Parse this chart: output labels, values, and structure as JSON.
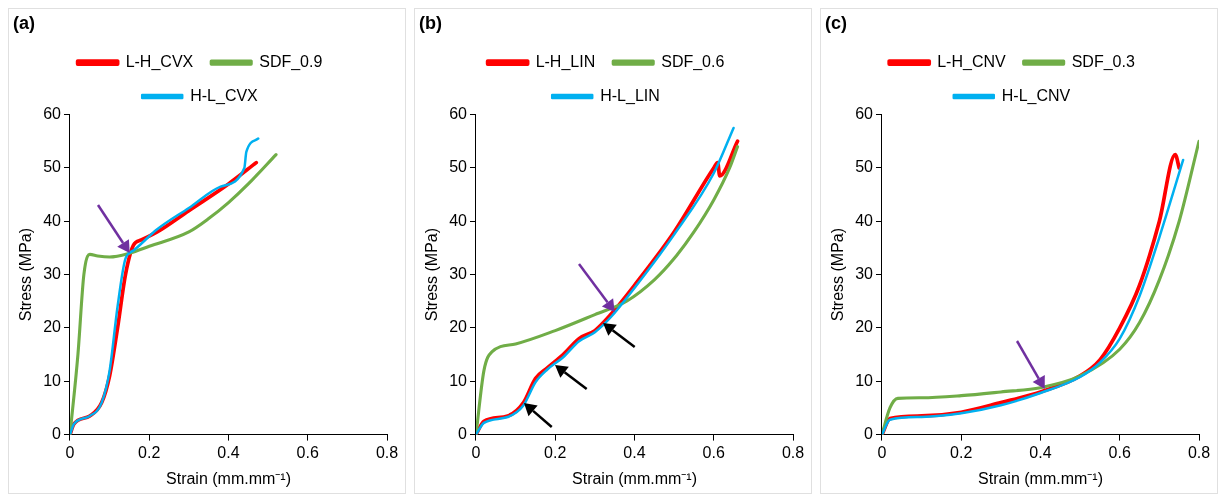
{
  "chart_data": [
    {
      "type": "line",
      "title": "(a)",
      "xlabel": "Strain (mm.mm⁻¹)",
      "ylabel": "Stress (MPa)",
      "xlim": [
        0,
        0.8
      ],
      "xticks": [
        0,
        0.2,
        0.4,
        0.6,
        0.8
      ],
      "ylim": [
        0,
        60
      ],
      "yticks": [
        0,
        10,
        20,
        30,
        40,
        50,
        60
      ],
      "grid": false,
      "legend": "top",
      "marker": "none",
      "series": [
        {
          "name": "L-H_CVX",
          "color": "#ff0000",
          "x": [
            0,
            0.01,
            0.05,
            0.08,
            0.1,
            0.12,
            0.14,
            0.16,
            0.18,
            0.22,
            0.3,
            0.4,
            0.47
          ],
          "values": [
            0,
            2,
            3.5,
            6,
            11,
            20,
            30,
            35.5,
            36.5,
            38,
            42,
            47,
            51
          ]
        },
        {
          "name": "SDF_0.9",
          "color": "#70ad47",
          "x": [
            0,
            0.02,
            0.035,
            0.05,
            0.07,
            0.1,
            0.15,
            0.2,
            0.3,
            0.35,
            0.4,
            0.45,
            0.52
          ],
          "values": [
            0,
            15,
            30,
            33.8,
            33.5,
            33.3,
            34,
            35.3,
            38,
            40.5,
            43.5,
            47,
            52.5
          ]
        },
        {
          "name": "H-L_CVX",
          "color": "#00b0f0",
          "x": [
            0,
            0.01,
            0.05,
            0.08,
            0.1,
            0.12,
            0.14,
            0.16,
            0.22,
            0.3,
            0.38,
            0.44,
            0.445,
            0.475
          ],
          "values": [
            0,
            2,
            3.5,
            6,
            12,
            24,
            33,
            34.5,
            38.5,
            42.5,
            46.5,
            50,
            53,
            55.5
          ]
        }
      ]
    },
    {
      "type": "line",
      "title": "(b)",
      "xlabel": "Strain (mm.mm⁻¹)",
      "ylabel": "Stress (MPa)",
      "xlim": [
        0,
        0.8
      ],
      "xticks": [
        0,
        0.2,
        0.4,
        0.6,
        0.8
      ],
      "ylim": [
        0,
        60
      ],
      "yticks": [
        0,
        10,
        20,
        30,
        40,
        50,
        60
      ],
      "grid": false,
      "legend": "top",
      "marker": "none",
      "series": [
        {
          "name": "L-H_LIN",
          "color": "#ff0000",
          "x": [
            0,
            0.02,
            0.08,
            0.12,
            0.15,
            0.18,
            0.22,
            0.26,
            0.3,
            0.34,
            0.4,
            0.5,
            0.6,
            0.61,
            0.615,
            0.66
          ],
          "values": [
            0,
            2.5,
            3.5,
            6,
            10.5,
            12.5,
            15,
            18,
            19.5,
            22.5,
            28,
            38,
            50,
            51,
            48.5,
            55
          ]
        },
        {
          "name": "SDF_0.6",
          "color": "#70ad47",
          "x": [
            0,
            0.02,
            0.04,
            0.1,
            0.2,
            0.3,
            0.38,
            0.45,
            0.5,
            0.55,
            0.6,
            0.64,
            0.66
          ],
          "values": [
            0,
            12,
            15.5,
            17,
            19.5,
            22.5,
            25,
            29,
            33,
            38,
            44,
            50,
            54
          ]
        },
        {
          "name": "H-L_LIN",
          "color": "#00b0f0",
          "x": [
            0,
            0.02,
            0.08,
            0.12,
            0.15,
            0.18,
            0.22,
            0.26,
            0.3,
            0.34,
            0.4,
            0.5,
            0.6,
            0.65
          ],
          "values": [
            0,
            2.2,
            3.3,
            5.5,
            9.8,
            12.2,
            14.5,
            17.5,
            19.2,
            22,
            27.5,
            37.5,
            49,
            57.5
          ]
        }
      ]
    },
    {
      "type": "line",
      "title": "(c)",
      "xlabel": "Strain (mm.mm⁻¹)",
      "ylabel": "Stress (MPa)",
      "xlim": [
        0,
        0.8
      ],
      "xticks": [
        0,
        0.2,
        0.4,
        0.6,
        0.8
      ],
      "ylim": [
        0,
        60
      ],
      "yticks": [
        0,
        10,
        20,
        30,
        40,
        50,
        60
      ],
      "grid": false,
      "legend": "top",
      "marker": "none",
      "series": [
        {
          "name": "L-H_CNV",
          "color": "#ff0000",
          "x": [
            0,
            0.02,
            0.1,
            0.2,
            0.3,
            0.4,
            0.5,
            0.55,
            0.6,
            0.65,
            0.7,
            0.74,
            0.75
          ],
          "values": [
            0,
            3,
            3.5,
            4.2,
            6,
            8,
            11,
            14,
            20,
            28,
            40,
            52.5,
            50
          ]
        },
        {
          "name": "SDF_0.3",
          "color": "#70ad47",
          "x": [
            0,
            0.02,
            0.04,
            0.1,
            0.2,
            0.3,
            0.4,
            0.5,
            0.6,
            0.65,
            0.7,
            0.75,
            0.8
          ],
          "values": [
            0,
            5,
            6.8,
            6.9,
            7.3,
            8,
            8.8,
            11,
            16,
            21,
            29,
            40,
            55
          ]
        },
        {
          "name": "H-L_CNV",
          "color": "#00b0f0",
          "x": [
            0,
            0.02,
            0.1,
            0.2,
            0.3,
            0.4,
            0.5,
            0.55,
            0.6,
            0.65,
            0.7,
            0.76
          ],
          "values": [
            0,
            2.8,
            3.3,
            4,
            5.5,
            7.8,
            10.8,
            13.5,
            18,
            26,
            37,
            51.5
          ]
        }
      ]
    }
  ]
}
